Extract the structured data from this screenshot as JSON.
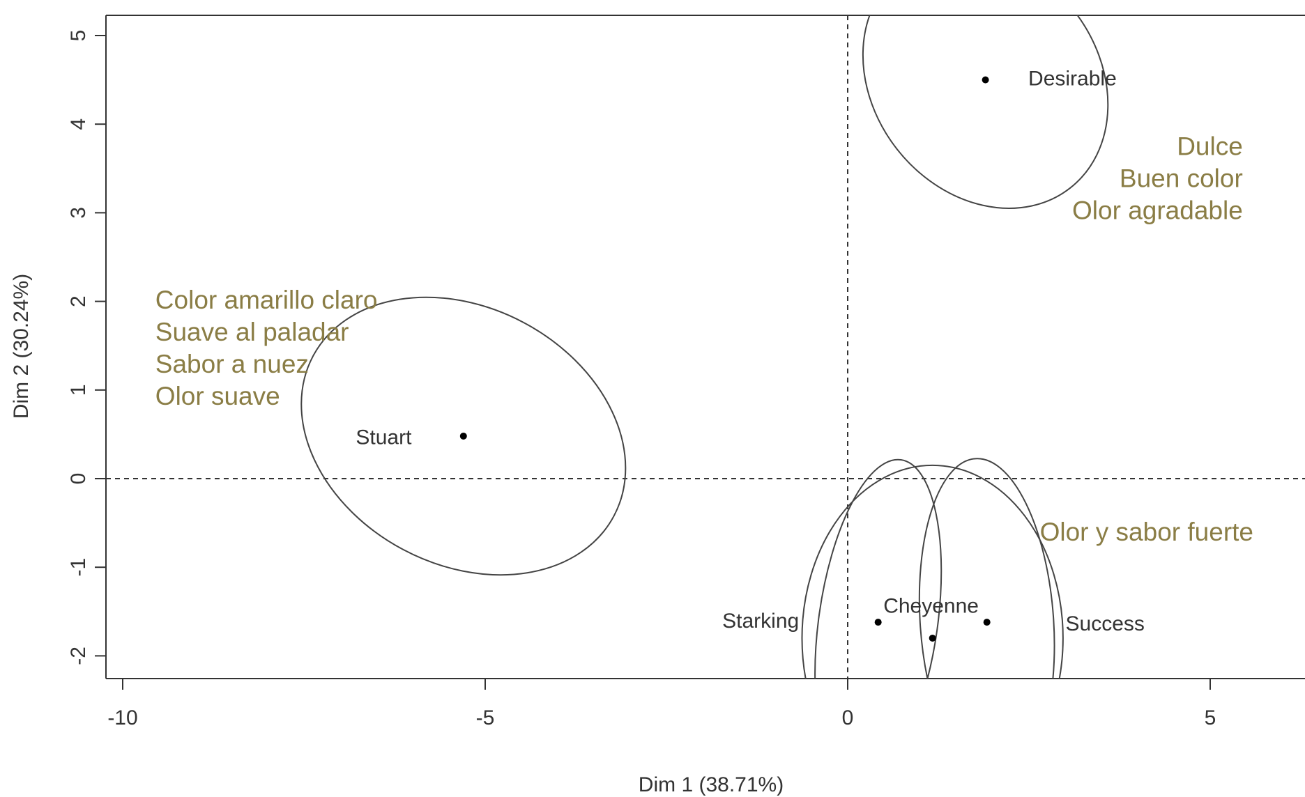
{
  "chart_data": {
    "type": "scatter",
    "title": "",
    "xlabel": "Dim 1 (38.71%)",
    "ylabel": "Dim 2 (30.24%)",
    "xlim": [
      -10.2,
      6.5
    ],
    "ylim": [
      -2.25,
      5.25
    ],
    "x_ticks": [
      -10,
      -5,
      0,
      5
    ],
    "x_tick_labels": [
      "-10",
      "-5",
      "0",
      "5"
    ],
    "y_ticks": [
      -2,
      -1,
      0,
      1,
      2,
      3,
      4,
      5
    ],
    "y_tick_labels": [
      "-2",
      "-1",
      "0",
      "1",
      "2",
      "3",
      "4",
      "5"
    ],
    "reference_lines": {
      "x": 0,
      "y": 0,
      "style": "dashed"
    },
    "grid": false,
    "colors": {
      "axis": "#333333",
      "points": "#000000",
      "annotations": "#8a7d45",
      "ellipses": "#444444"
    },
    "points": [
      {
        "label": "Desirable",
        "x": 1.9,
        "y": 4.5,
        "label_x": 3.1,
        "label_y": 4.5
      },
      {
        "label": "Stuart",
        "x": -5.3,
        "y": 0.48,
        "label_x": -6.4,
        "label_y": 0.45
      },
      {
        "label": "Starking",
        "x": 0.42,
        "y": -1.62,
        "label_x": -1.2,
        "label_y": -1.62
      },
      {
        "label": "Cheyenne",
        "x": 1.17,
        "y": -1.8,
        "label_x": 1.15,
        "label_y": -1.45
      },
      {
        "label": "Success",
        "x": 1.92,
        "y": -1.62,
        "label_x": 3.55,
        "label_y": -1.65
      }
    ],
    "confidence_ellipses": [
      {
        "group": "Desirable",
        "cx": 1.9,
        "cy": 4.5,
        "rx": 1.55,
        "ry": 1.55,
        "angle": -38
      },
      {
        "group": "Stuart",
        "cx": -5.3,
        "cy": 0.48,
        "rx": 2.35,
        "ry": 1.45,
        "angle": 28
      },
      {
        "group": "Starking",
        "cx": 0.42,
        "cy": -1.62,
        "rx": 0.82,
        "ry": 1.85,
        "angle": 8
      },
      {
        "group": "Cheyenne",
        "cx": 1.17,
        "cy": -1.8,
        "rx": 1.8,
        "ry": 1.95,
        "angle": 0
      },
      {
        "group": "Success",
        "cx": 1.92,
        "cy": -1.62,
        "rx": 0.92,
        "ry": 1.85,
        "angle": -4
      }
    ],
    "annotations": [
      {
        "lines": [
          "Dulce",
          "Buen color",
          "Olor agradable"
        ],
        "x": 5.45,
        "y": 3.65,
        "align": "end"
      },
      {
        "lines": [
          "Color amarillo claro",
          "Suave al paladar",
          "Sabor a nuez",
          "Olor suave"
        ],
        "x": -9.55,
        "y": 1.92,
        "align": "start"
      },
      {
        "lines": [
          "Olor  y sabor fuerte"
        ],
        "x": 2.65,
        "y": -0.7,
        "align": "start"
      }
    ]
  }
}
